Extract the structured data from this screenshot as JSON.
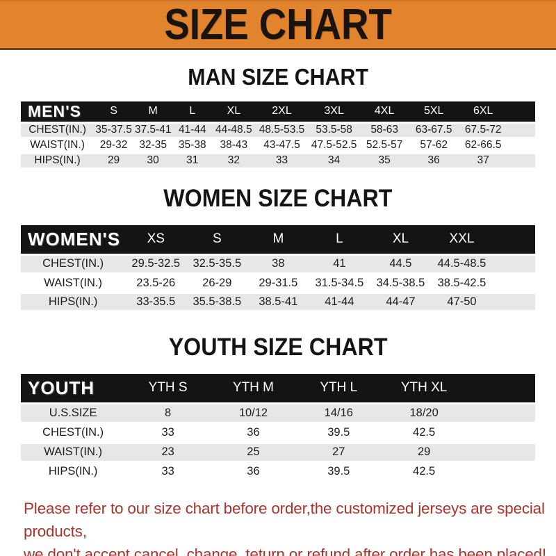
{
  "banner": {
    "title": "SIZE CHART",
    "bg_color": "#E2832E",
    "text_color": "#1A1410"
  },
  "sections": [
    {
      "id": "men",
      "title": "MAN SIZE CHART",
      "corner_label": "MEN'S",
      "columns": [
        "S",
        "M",
        "L",
        "XL",
        "2XL",
        "3XL",
        "4XL",
        "5XL",
        "6XL"
      ],
      "rows": [
        {
          "label": "CHEST(IN.)",
          "values": [
            "35-37.5",
            "37.5-41",
            "41-44",
            "44-48.5",
            "48.5-53.5",
            "53.5-58",
            "58-63",
            "63-67.5",
            "67.5-72"
          ]
        },
        {
          "label": "WAIST(IN.)",
          "values": [
            "29-32",
            "32-35",
            "35-38",
            "38-43",
            "43-47.5",
            "47.5-52.5",
            "52.5-57",
            "57-62",
            "62-66.5"
          ]
        },
        {
          "label": "HIPS(IN.)",
          "values": [
            "29",
            "30",
            "31",
            "32",
            "33",
            "34",
            "35",
            "36",
            "37"
          ]
        }
      ]
    },
    {
      "id": "women",
      "title": "WOMEN SIZE CHART",
      "corner_label": "WOMEN'S",
      "columns": [
        "XS",
        "S",
        "M",
        "L",
        "XL",
        "XXL"
      ],
      "rows": [
        {
          "label": "CHEST(IN.)",
          "values": [
            "29.5-32.5",
            "32.5-35.5",
            "38",
            "41",
            "44.5",
            "44.5-48.5"
          ]
        },
        {
          "label": "WAIST(IN.)",
          "values": [
            "23.5-26",
            "26-29",
            "29-31.5",
            "31.5-34.5",
            "34.5-38.5",
            "38.5-42.5"
          ]
        },
        {
          "label": "HIPS(IN.)",
          "values": [
            "33-35.5",
            "35.5-38.5",
            "38.5-41",
            "41-44",
            "44-47",
            "47-50"
          ]
        }
      ]
    },
    {
      "id": "youth",
      "title": "YOUTH SIZE CHART",
      "corner_label": "YOUTH",
      "columns": [
        "YTH S",
        "YTH M",
        "YTH L",
        "YTH XL"
      ],
      "rows": [
        {
          "label": "U.S.SIZE",
          "values": [
            "8",
            "10/12",
            "14/16",
            "18/20"
          ]
        },
        {
          "label": "CHEST(IN.)",
          "values": [
            "33",
            "36",
            "39.5",
            "42.5"
          ]
        },
        {
          "label": "WAIST(IN.)",
          "values": [
            "23",
            "25",
            "27",
            "29"
          ]
        },
        {
          "label": "HIPS(IN.)",
          "values": [
            "33",
            "36",
            "39.5",
            "42.5"
          ]
        }
      ]
    }
  ],
  "footer": {
    "line1": "Please refer to our size chart before order,the customized jerseys are special products,",
    "line2": "we don't accept cancel, change, teturn or refund after order has been placed!",
    "text_color": "#A9342C"
  },
  "colors": {
    "banner_orange": "#E2832E",
    "table_header_bg": "#141414",
    "table_header_text": "#FFFFFF",
    "row_alt_bg": "#E7E7E7",
    "page_bg": "#FFFFFF",
    "title_text": "#141414"
  }
}
